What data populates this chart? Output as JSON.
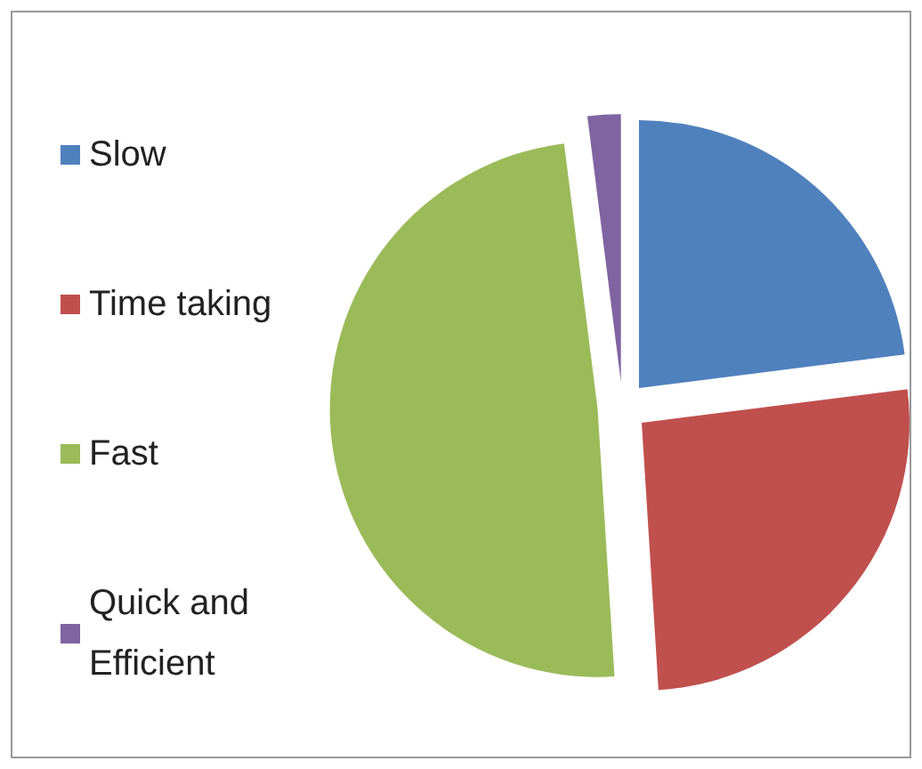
{
  "chart_data": {
    "type": "pie",
    "categories": [
      "Slow",
      "Time taking",
      "Fast",
      "Quick and Efficient"
    ],
    "values": [
      23,
      26,
      49,
      2
    ],
    "colors": [
      "#4f81bd",
      "#c0504d",
      "#9bbb59",
      "#8064a2"
    ],
    "legend": "left"
  }
}
